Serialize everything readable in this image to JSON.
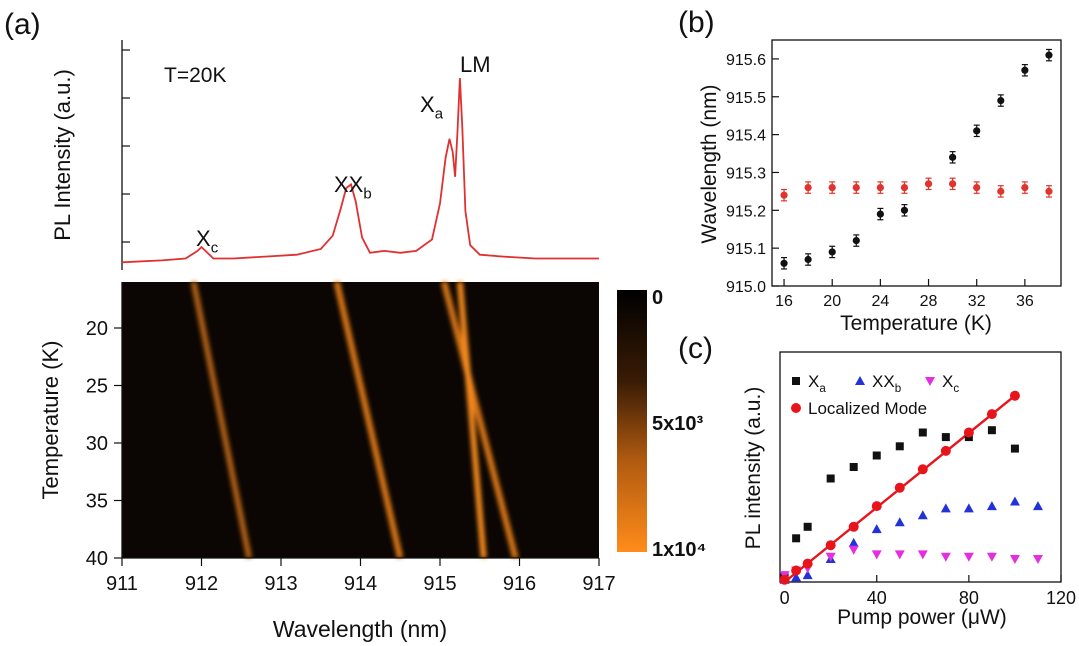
{
  "colors": {
    "pl_spectrum": "#e03030",
    "panel_b_series_1": "#111111",
    "panel_b_series_2": "#e0342c",
    "panel_c_xa": "#111111",
    "panel_c_xxb": "#2332d8",
    "panel_c_xc": "#e42fe0",
    "panel_c_lm": "#e8141c",
    "colormap_low": "#000000",
    "colormap_high": "#ff8c1a"
  },
  "chart_data": [
    {
      "panel": "(a)",
      "type": "line",
      "ylabel": "PL Intensity (a.u.)",
      "annotation": "T=20K",
      "peak_labels": [
        {
          "text": "X",
          "sub": "c",
          "x": 912.0
        },
        {
          "text": "XX",
          "sub": "b",
          "x": 913.9
        },
        {
          "text": "X",
          "sub": "a",
          "x": 915.1
        },
        {
          "text": "LM",
          "sub": "",
          "x": 915.25
        }
      ],
      "x": [
        911.0,
        911.5,
        911.8,
        911.95,
        912.0,
        912.05,
        912.15,
        912.4,
        912.8,
        913.2,
        913.5,
        913.65,
        913.75,
        913.82,
        913.88,
        913.94,
        914.02,
        914.12,
        914.3,
        914.5,
        914.7,
        914.9,
        915.0,
        915.07,
        915.12,
        915.16,
        915.19,
        915.22,
        915.25,
        915.28,
        915.32,
        915.38,
        915.5,
        915.8,
        916.2,
        916.6,
        917.0
      ],
      "y": [
        0.03,
        0.04,
        0.05,
        0.09,
        0.11,
        0.09,
        0.05,
        0.05,
        0.06,
        0.07,
        0.1,
        0.17,
        0.31,
        0.42,
        0.44,
        0.35,
        0.16,
        0.08,
        0.09,
        0.08,
        0.09,
        0.15,
        0.34,
        0.58,
        0.68,
        0.61,
        0.48,
        0.72,
        1.0,
        0.74,
        0.3,
        0.12,
        0.07,
        0.06,
        0.05,
        0.05,
        0.05
      ]
    },
    {
      "panel": "(a)",
      "type": "heatmap",
      "xlabel": "Wavelength (nm)",
      "ylabel": "Temperature (K)",
      "xlim": [
        911,
        917
      ],
      "ylim": [
        16,
        40
      ],
      "xticks": [
        911,
        912,
        913,
        914,
        915,
        916,
        917
      ],
      "xtick_labels": [
        "911",
        "912",
        "913",
        "914",
        "915",
        "916",
        "917"
      ],
      "yticks": [
        20,
        25,
        30,
        35,
        40
      ],
      "ytick_labels": [
        "20",
        "25",
        "30",
        "35",
        "40"
      ],
      "colorbar": {
        "labels": [
          "0",
          "5x10³",
          "1x10⁴"
        ],
        "values": [
          0,
          5000,
          10000
        ]
      },
      "lines": [
        {
          "name": "X_c",
          "T": [
            16,
            40
          ],
          "wl": [
            911.9,
            912.6
          ],
          "peak": 3500,
          "width": 0.07
        },
        {
          "name": "XX_b",
          "T": [
            16,
            40
          ],
          "wl": [
            913.7,
            914.5
          ],
          "peak": 7000,
          "width": 0.08
        },
        {
          "name": "X_a",
          "T": [
            16,
            40
          ],
          "wl": [
            915.05,
            915.95
          ],
          "peak": 7500,
          "width": 0.08
        },
        {
          "name": "LM",
          "T": [
            16,
            40
          ],
          "wl": [
            915.25,
            915.55
          ],
          "peak": 10000,
          "width": 0.07
        }
      ]
    },
    {
      "panel": "(b)",
      "type": "scatter",
      "xlabel": "Temperature (K)",
      "ylabel": "Wavelength (nm)",
      "xlim": [
        15,
        39
      ],
      "ylim": [
        915.0,
        915.65
      ],
      "xticks": [
        16,
        20,
        24,
        28,
        32,
        36
      ],
      "xtick_labels": [
        "16",
        "20",
        "24",
        "28",
        "32",
        "36"
      ],
      "yticks": [
        915.0,
        915.1,
        915.2,
        915.3,
        915.4,
        915.5,
        915.6
      ],
      "ytick_labels": [
        "915.0",
        "915.1",
        "915.2",
        "915.3",
        "915.4",
        "915.5",
        "915.6"
      ],
      "series": [
        {
          "x": [
            16,
            18,
            20,
            22,
            24,
            26,
            30,
            32,
            34,
            36,
            38
          ],
          "y": [
            915.06,
            915.07,
            915.09,
            915.12,
            915.19,
            915.2,
            915.34,
            915.41,
            915.49,
            915.57,
            915.61
          ],
          "err": 0.015
        },
        {
          "x": [
            16,
            18,
            20,
            22,
            24,
            26,
            28,
            30,
            32,
            34,
            36,
            38
          ],
          "y": [
            915.24,
            915.26,
            915.26,
            915.26,
            915.26,
            915.26,
            915.27,
            915.27,
            915.26,
            915.25,
            915.26,
            915.25
          ],
          "err": 0.015
        }
      ]
    },
    {
      "panel": "(c)",
      "type": "scatter",
      "xlabel": "Pump power (μW)",
      "ylabel": "PL intensity (a.u.)",
      "xlim": [
        -2,
        120
      ],
      "ylim": [
        0,
        1.0
      ],
      "xticks": [
        0,
        40,
        80,
        120
      ],
      "xtick_labels": [
        "0",
        "40",
        "80",
        "120"
      ],
      "legend_position": "top-left",
      "series": [
        {
          "name": "X",
          "sub": "a",
          "marker": "square",
          "x": [
            0,
            5,
            10,
            20,
            30,
            40,
            50,
            60,
            70,
            80,
            90,
            100
          ],
          "y": [
            0.02,
            0.19,
            0.24,
            0.45,
            0.5,
            0.55,
            0.59,
            0.65,
            0.63,
            0.63,
            0.66,
            0.58
          ]
        },
        {
          "name": "XX",
          "sub": "b",
          "marker": "triangle-up",
          "x": [
            0,
            5,
            10,
            20,
            30,
            40,
            50,
            60,
            70,
            80,
            90,
            100,
            110
          ],
          "y": [
            0.01,
            0.02,
            0.03,
            0.1,
            0.17,
            0.23,
            0.26,
            0.29,
            0.32,
            0.32,
            0.33,
            0.35,
            0.33
          ]
        },
        {
          "name": "X",
          "sub": "c",
          "marker": "triangle-down",
          "x": [
            0,
            5,
            10,
            20,
            30,
            40,
            50,
            60,
            70,
            80,
            90,
            100,
            110
          ],
          "y": [
            0.03,
            0.05,
            0.06,
            0.11,
            0.14,
            0.12,
            0.12,
            0.12,
            0.11,
            0.11,
            0.11,
            0.1,
            0.1
          ]
        },
        {
          "name": "Localized Mode",
          "sub": "",
          "marker": "circle",
          "x": [
            0,
            5,
            10,
            20,
            30,
            40,
            50,
            60,
            70,
            80,
            90,
            100
          ],
          "y": [
            0.01,
            0.05,
            0.08,
            0.16,
            0.24,
            0.33,
            0.41,
            0.49,
            0.57,
            0.65,
            0.73,
            0.81
          ]
        }
      ],
      "fit_line": {
        "x": [
          0,
          100
        ],
        "y": [
          0.0,
          0.81
        ]
      }
    }
  ]
}
